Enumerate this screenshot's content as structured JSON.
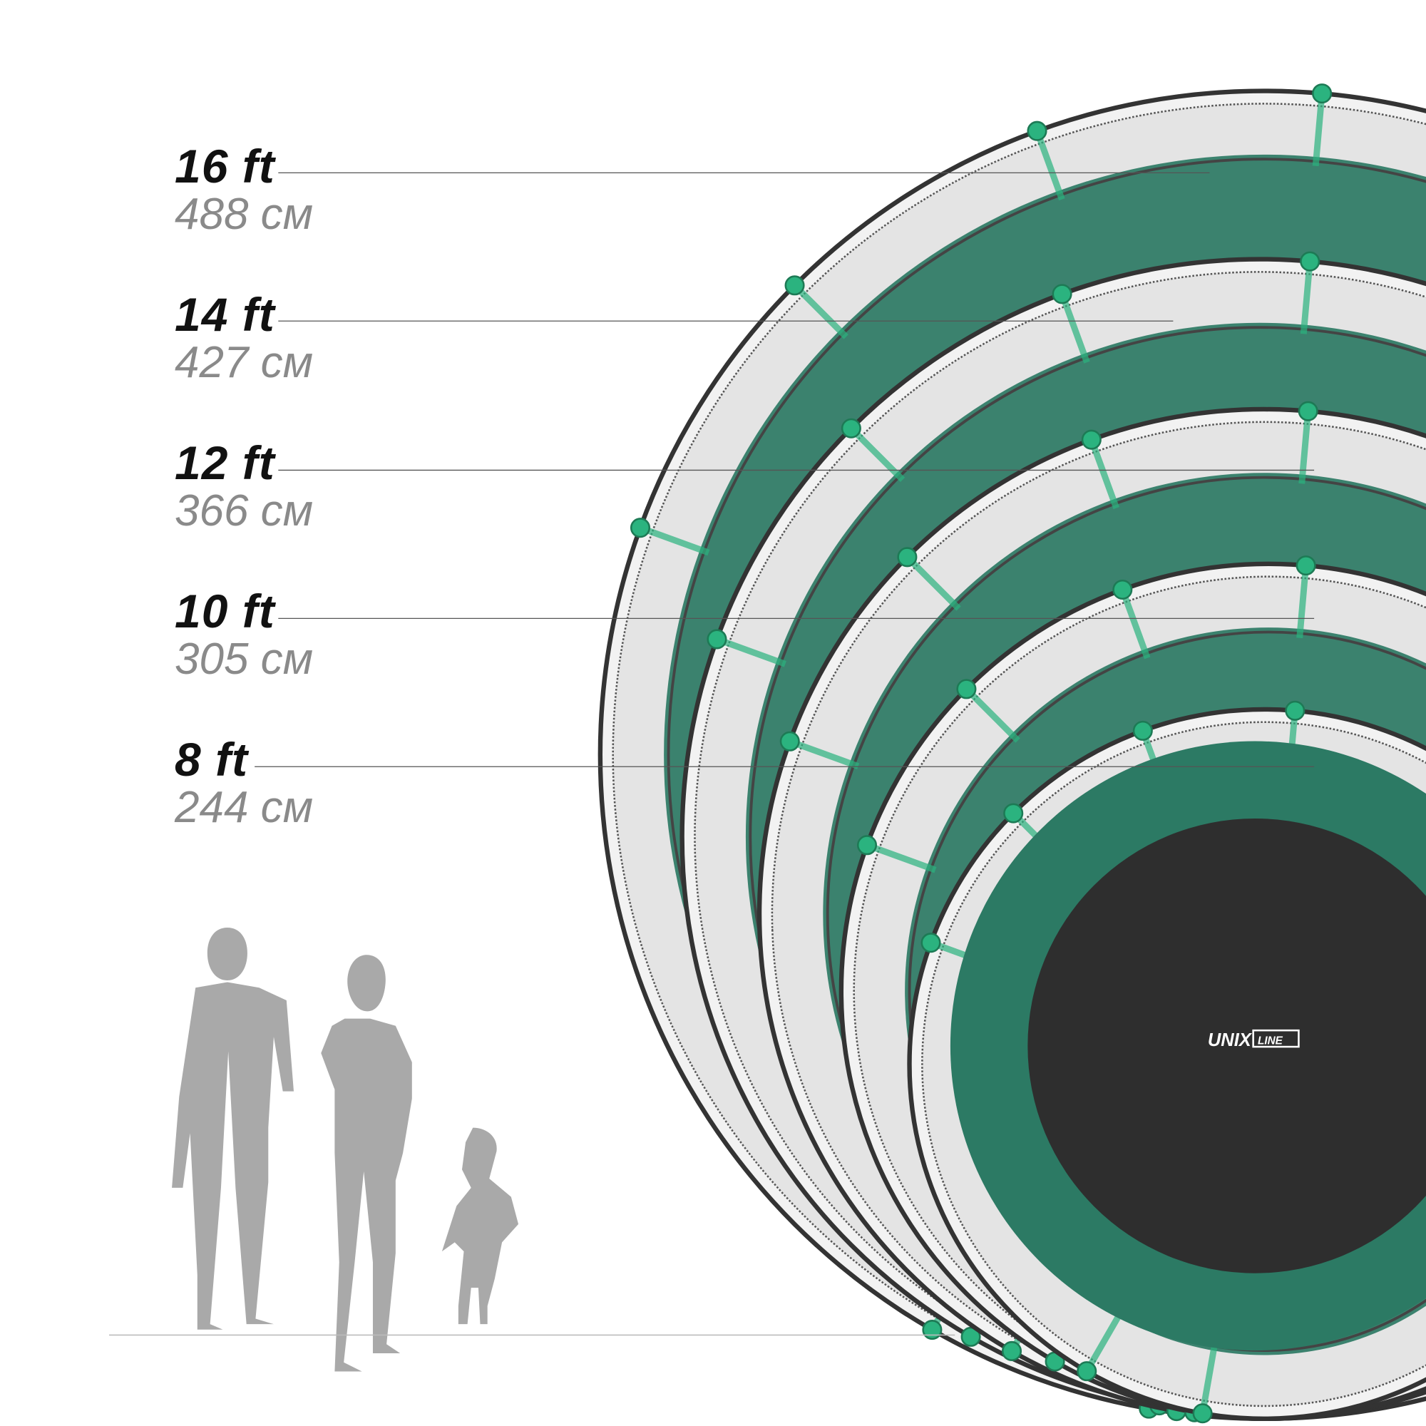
{
  "sizes": [
    {
      "ft": "16 ft",
      "cm": "488 см"
    },
    {
      "ft": "14 ft",
      "cm": "427 см"
    },
    {
      "ft": "12 ft",
      "cm": "366 см"
    },
    {
      "ft": "10 ft",
      "cm": "305 см"
    },
    {
      "ft": "8 ft",
      "cm": "244 см"
    }
  ],
  "logo": {
    "brand": "UNIX",
    "sub": "LINE"
  },
  "colors": {
    "pad": "#2c7a64",
    "mat": "#2e2e2e",
    "pole": "#2bb37f",
    "silhouette": "#a9a9a9"
  }
}
